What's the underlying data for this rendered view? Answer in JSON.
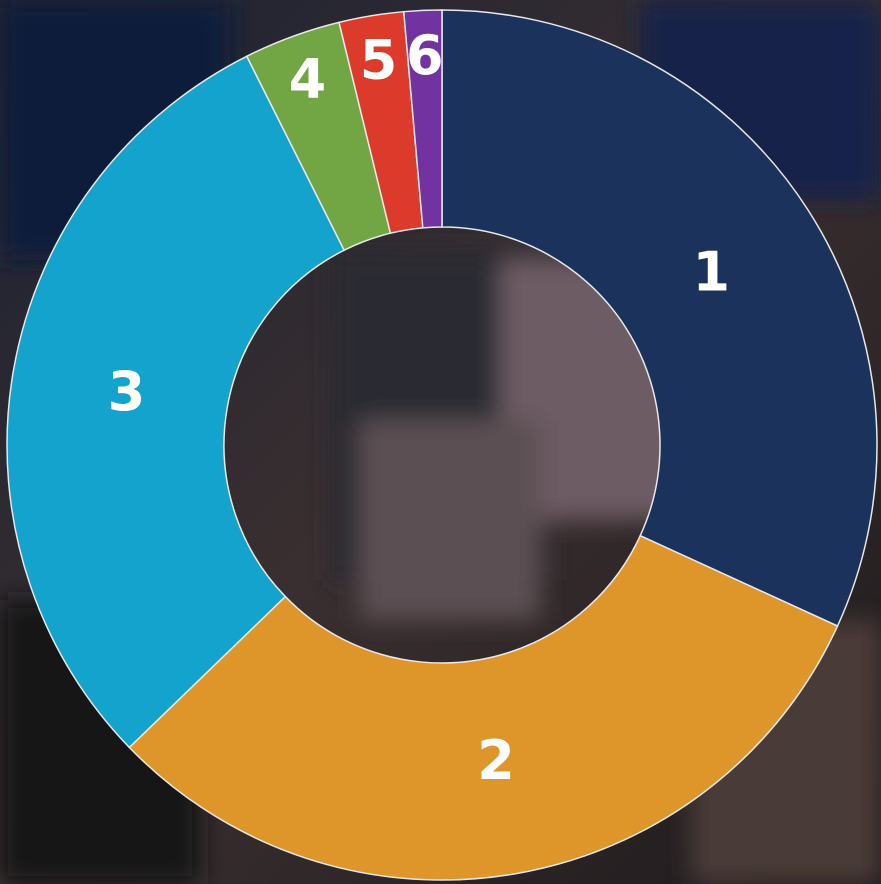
{
  "chart_data": {
    "type": "donut",
    "categories": [
      "1",
      "2",
      "3",
      "4",
      "5",
      "6"
    ],
    "values": [
      31.8,
      30.9,
      29.8,
      3.6,
      2.4,
      1.4
    ],
    "colors": [
      "#1b335c",
      "#de962b",
      "#14a3cc",
      "#72a544",
      "#dc3b2b",
      "#7232a0"
    ]
  }
}
